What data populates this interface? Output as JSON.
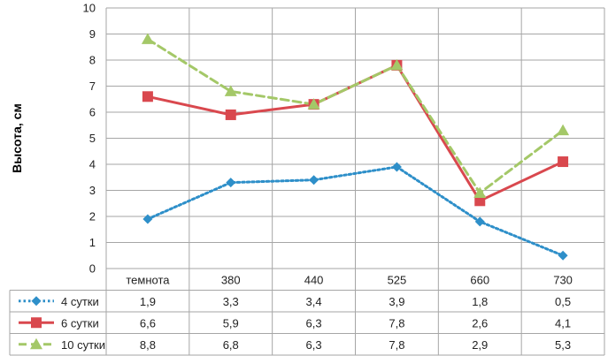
{
  "chart_data": {
    "type": "line",
    "ylabel": "Высота, см",
    "ylim": [
      0,
      10
    ],
    "yticks": [
      "0",
      "1",
      "2",
      "3",
      "4",
      "5",
      "6",
      "7",
      "8",
      "9",
      "10"
    ],
    "categories": [
      "темнота",
      "380",
      "440",
      "525",
      "660",
      "730"
    ],
    "grid": true,
    "legend": "data-table-left",
    "series": [
      {
        "name": "4 сутки",
        "values": [
          1.9,
          3.3,
          3.4,
          3.9,
          1.8,
          0.5
        ],
        "labels": [
          "1,9",
          "3,3",
          "3,4",
          "3,9",
          "1,8",
          "0,5"
        ],
        "color": "#2E8FC9",
        "style": "dotted",
        "marker": "diamond"
      },
      {
        "name": "6 сутки",
        "values": [
          6.6,
          5.9,
          6.3,
          7.8,
          2.6,
          4.1
        ],
        "labels": [
          "6,6",
          "5,9",
          "6,3",
          "7,8",
          "2,6",
          "4,1"
        ],
        "color": "#D9484E",
        "style": "solid",
        "marker": "square"
      },
      {
        "name": "10 сутки",
        "values": [
          8.8,
          6.8,
          6.3,
          7.8,
          2.9,
          5.3
        ],
        "labels": [
          "8,8",
          "6,8",
          "6,3",
          "7,8",
          "2,9",
          "5,3"
        ],
        "color": "#A4C868",
        "style": "dashed",
        "marker": "triangle"
      }
    ]
  }
}
